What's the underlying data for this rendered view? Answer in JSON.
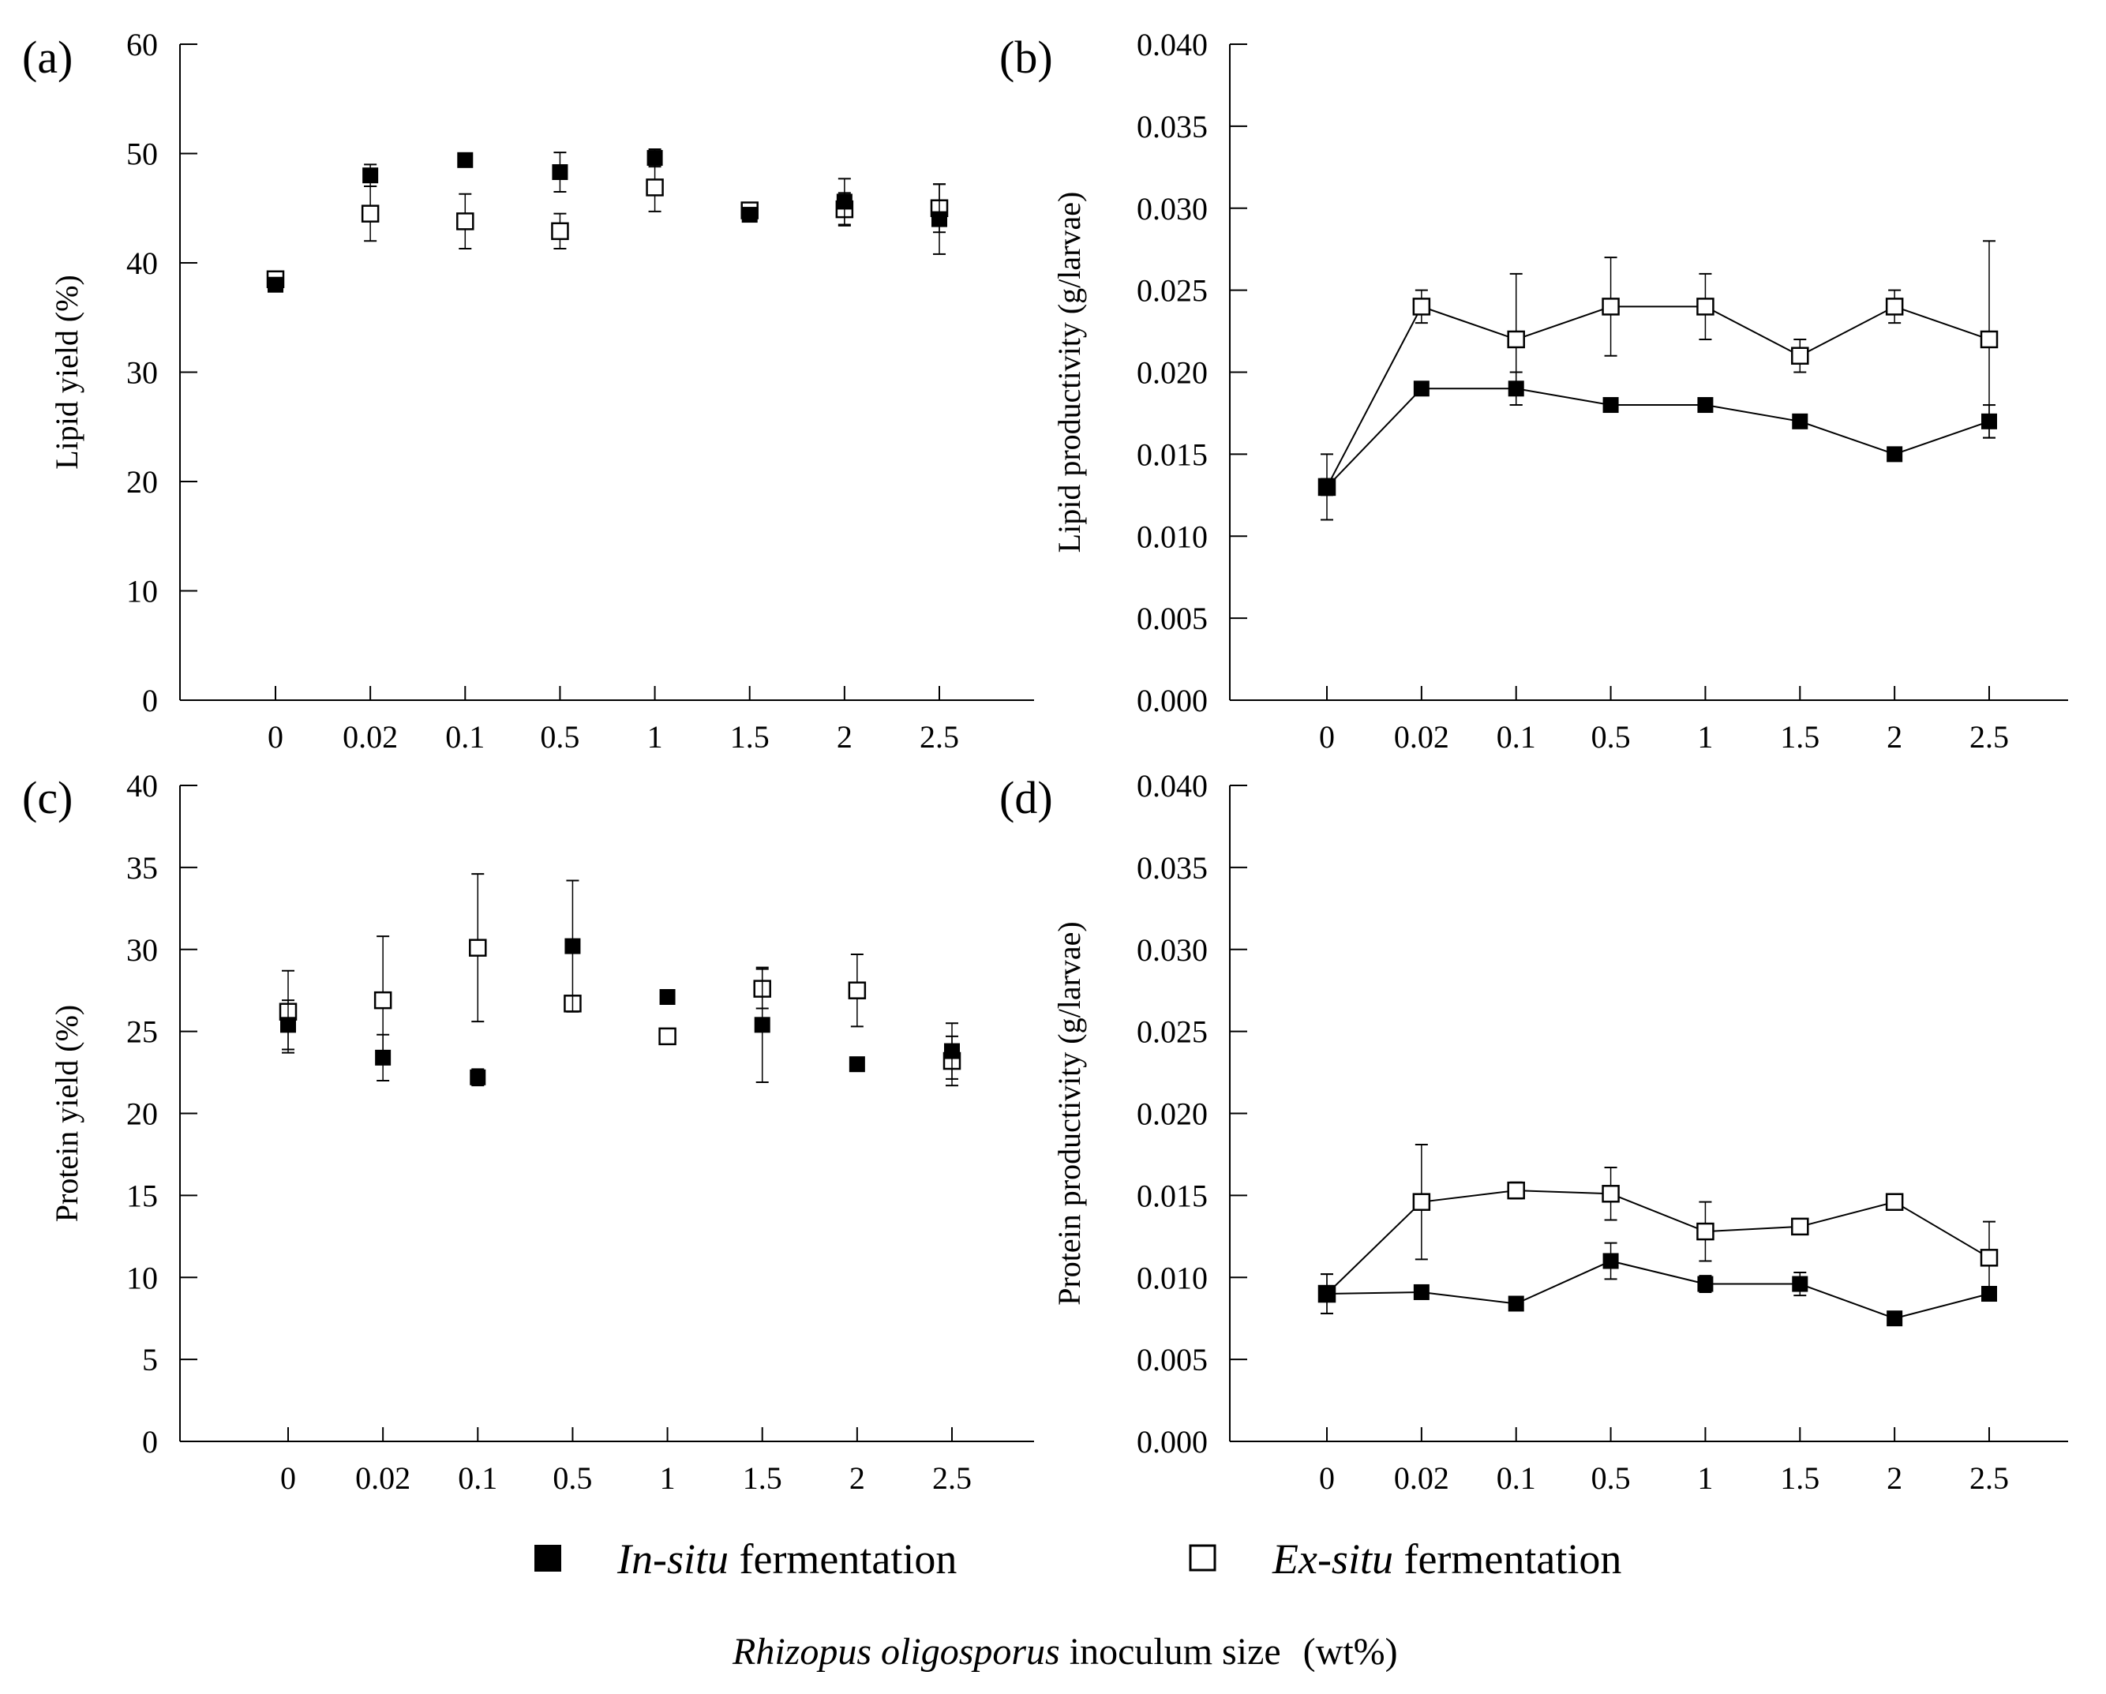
{
  "legend": {
    "in_situ": {
      "italic": "In-situ",
      "rest": " fermentation",
      "marker": "filled-square",
      "color": "#000000"
    },
    "ex_situ": {
      "italic": "Ex-situ",
      "rest": " fermentation",
      "marker": "open-square",
      "color": "#000000"
    }
  },
  "x_caption": {
    "italic": "Rhizopus oligosporus",
    "rest": " inoculum size",
    "unit": "(wt%)"
  },
  "chart_data": [
    {
      "panel": "(a)",
      "type": "scatter",
      "categories": [
        "0",
        "0.02",
        "0.1",
        "0.5",
        "1",
        "1.5",
        "2",
        "2.5"
      ],
      "ylabel": "Lipid yield (%)",
      "ylim": [
        0,
        60
      ],
      "yticks": [
        "0",
        "10",
        "20",
        "30",
        "40",
        "50",
        "60"
      ],
      "ytick_values": [
        0,
        10,
        20,
        30,
        40,
        50,
        60
      ],
      "connect_lines": false,
      "series": [
        {
          "name": "In-situ fermentation",
          "marker": "filled",
          "values": [
            38.0,
            48.0,
            49.4,
            48.3,
            49.6,
            44.4,
            45.6,
            44.0
          ],
          "errors": [
            0.3,
            1.0,
            0.6,
            1.8,
            0.8,
            0.3,
            2.1,
            3.2
          ]
        },
        {
          "name": "Ex-situ fermentation",
          "marker": "open",
          "values": [
            38.5,
            44.5,
            43.8,
            42.9,
            46.9,
            44.8,
            44.9,
            45.0
          ],
          "errors": [
            0.3,
            2.5,
            2.5,
            1.6,
            2.2,
            0.3,
            1.5,
            2.2
          ]
        }
      ]
    },
    {
      "panel": "(b)",
      "type": "line",
      "categories": [
        "0",
        "0.02",
        "0.1",
        "0.5",
        "1",
        "1.5",
        "2",
        "2.5"
      ],
      "ylabel": "Lipid productivity (g/larvae)",
      "ylim": [
        0,
        0.04
      ],
      "yticks": [
        "0.000",
        "0.005",
        "0.010",
        "0.015",
        "0.020",
        "0.025",
        "0.030",
        "0.035",
        "0.040"
      ],
      "ytick_values": [
        0,
        0.005,
        0.01,
        0.015,
        0.02,
        0.025,
        0.03,
        0.035,
        0.04
      ],
      "connect_lines": true,
      "series": [
        {
          "name": "In-situ fermentation",
          "marker": "filled",
          "values": [
            0.013,
            0.019,
            0.019,
            0.018,
            0.018,
            0.017,
            0.015,
            0.017
          ],
          "errors": [
            0.0005,
            0.0003,
            0.001,
            0.0003,
            0.0003,
            0.0003,
            0.0003,
            0.001
          ]
        },
        {
          "name": "Ex-situ fermentation",
          "marker": "open",
          "values": [
            0.013,
            0.024,
            0.022,
            0.024,
            0.024,
            0.021,
            0.024,
            0.022
          ],
          "errors": [
            0.002,
            0.001,
            0.004,
            0.003,
            0.002,
            0.001,
            0.001,
            0.006
          ]
        }
      ]
    },
    {
      "panel": "(c)",
      "type": "scatter",
      "categories": [
        "0",
        "0.02",
        "0.1",
        "0.5",
        "1",
        "1.5",
        "2",
        "2.5"
      ],
      "ylabel": "Protein yield (%)",
      "ylim": [
        0,
        40
      ],
      "yticks": [
        "0",
        "5",
        "10",
        "15",
        "20",
        "25",
        "30",
        "35",
        "40"
      ],
      "ytick_values": [
        0,
        5,
        10,
        15,
        20,
        25,
        30,
        35,
        40
      ],
      "connect_lines": false,
      "series": [
        {
          "name": "In-situ fermentation",
          "marker": "filled",
          "values": [
            25.4,
            23.4,
            22.2,
            30.2,
            27.1,
            25.4,
            23.0,
            23.8
          ],
          "errors": [
            1.5,
            1.4,
            0.5,
            4.0,
            0.3,
            3.5,
            0.3,
            1.7
          ]
        },
        {
          "name": "Ex-situ fermentation",
          "marker": "open",
          "values": [
            26.2,
            26.9,
            30.1,
            26.7,
            24.7,
            27.6,
            27.5,
            23.2
          ],
          "errors": [
            2.5,
            3.9,
            4.5,
            0.3,
            0.3,
            1.2,
            2.2,
            1.5
          ]
        }
      ]
    },
    {
      "panel": "(d)",
      "type": "line",
      "categories": [
        "0",
        "0.02",
        "0.1",
        "0.5",
        "1",
        "1.5",
        "2",
        "2.5"
      ],
      "ylabel": "Protein productivity (g/larvae)",
      "ylim": [
        0,
        0.04
      ],
      "yticks": [
        "0.000",
        "0.005",
        "0.010",
        "0.015",
        "0.020",
        "0.025",
        "0.030",
        "0.035",
        "0.040"
      ],
      "ytick_values": [
        0,
        0.005,
        0.01,
        0.015,
        0.02,
        0.025,
        0.03,
        0.035,
        0.04
      ],
      "connect_lines": true,
      "series": [
        {
          "name": "In-situ fermentation",
          "marker": "filled",
          "values": [
            0.009,
            0.0091,
            0.0084,
            0.011,
            0.0096,
            0.0096,
            0.0075,
            0.009
          ],
          "errors": [
            0.0012,
            0.0003,
            0.0003,
            0.0011,
            0.0005,
            0.0007,
            0.0003,
            0.0003
          ]
        },
        {
          "name": "Ex-situ fermentation",
          "marker": "open",
          "values": [
            0.009,
            0.0146,
            0.0153,
            0.0151,
            0.0128,
            0.0131,
            0.0146,
            0.0112
          ],
          "errors": [
            0.0012,
            0.0035,
            0.0005,
            0.0016,
            0.0018,
            0.0003,
            0.0003,
            0.0022
          ]
        }
      ]
    }
  ]
}
